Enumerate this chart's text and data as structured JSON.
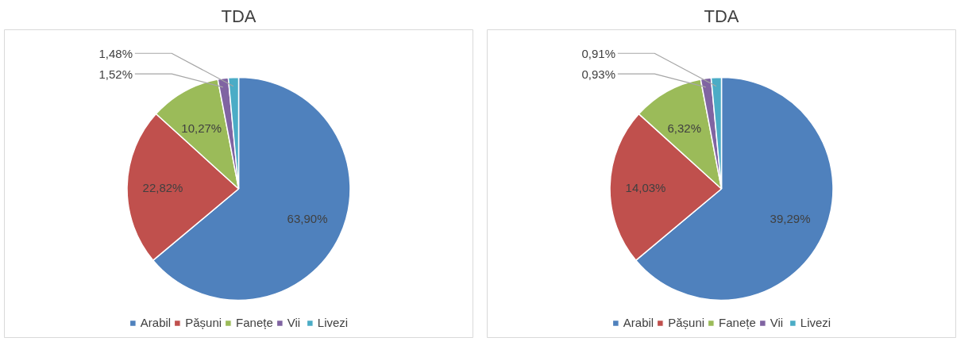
{
  "chart_data": [
    {
      "type": "pie",
      "title": "TDA",
      "categories": [
        "Arabil",
        "Pășuni",
        "Fanețe",
        "Vii",
        "Livezi"
      ],
      "values": [
        63.9,
        22.82,
        10.27,
        1.52,
        1.48
      ],
      "colors": [
        "#4f81bd",
        "#c0504d",
        "#9bbb59",
        "#8064a2",
        "#4bacc6"
      ],
      "value_labels": [
        "63,90%",
        "22,82%",
        "10,27%",
        "1,52%",
        "1,48%"
      ],
      "legend": "bottom"
    },
    {
      "type": "pie",
      "title": "TDA",
      "categories": [
        "Arabil",
        "Pășuni",
        "Fanețe",
        "Vii",
        "Livezi"
      ],
      "values": [
        39.29,
        14.03,
        6.32,
        0.93,
        0.91
      ],
      "colors": [
        "#4f81bd",
        "#c0504d",
        "#9bbb59",
        "#8064a2",
        "#4bacc6"
      ],
      "value_labels": [
        "39,29%",
        "14,03%",
        "6,32%",
        "0,93%",
        "0,91%"
      ],
      "legend": "bottom"
    }
  ]
}
